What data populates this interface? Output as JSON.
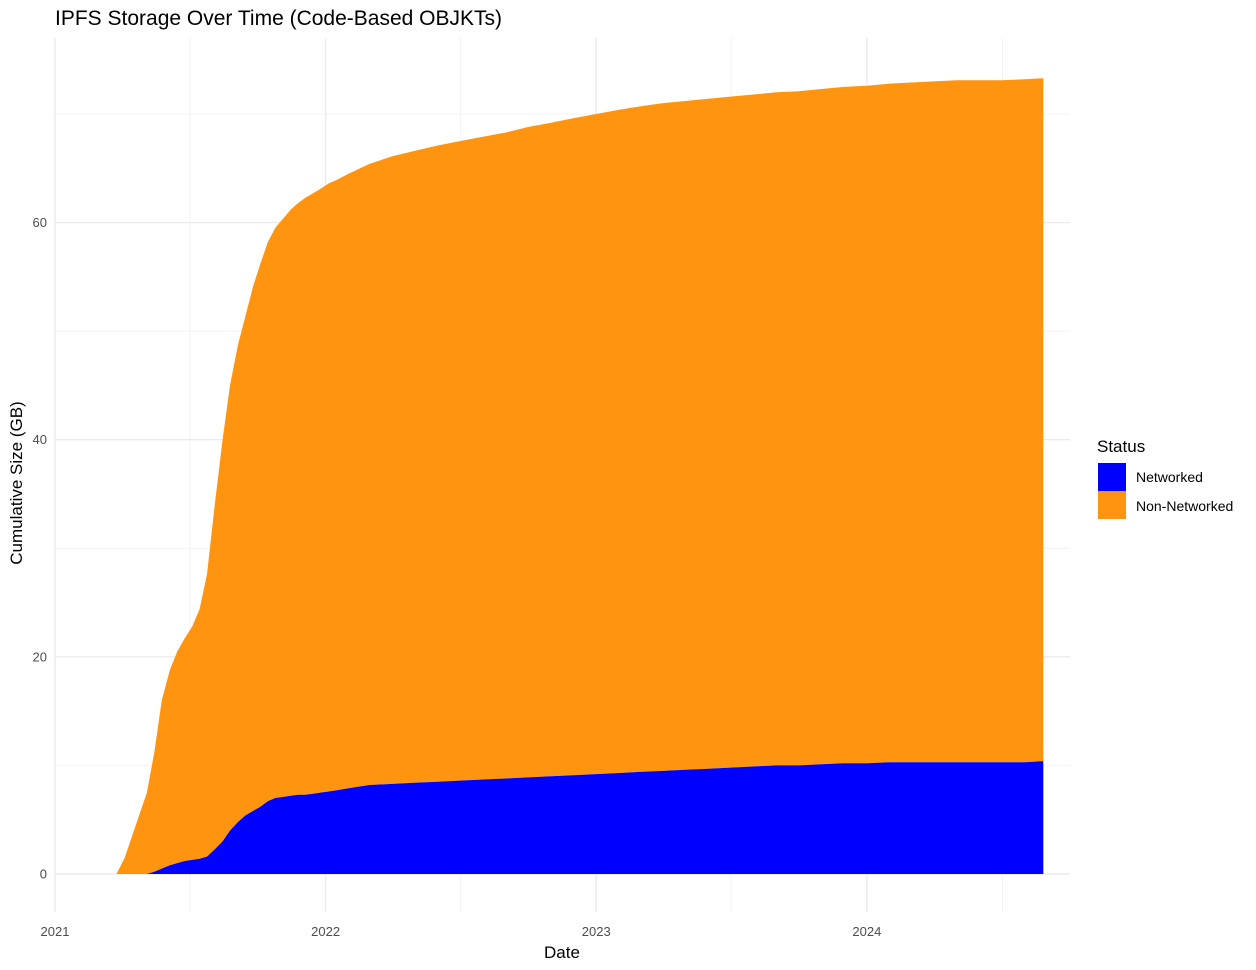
{
  "chart_data": {
    "type": "area",
    "stacked": true,
    "title": "IPFS Storage Over Time (Code-Based OBJKTs)",
    "xlabel": "Date",
    "ylabel": "Cumulative Size (GB)",
    "x_ticks": [
      "2021",
      "2022",
      "2023",
      "2024"
    ],
    "y_ticks": [
      0,
      20,
      40,
      60
    ],
    "xlim": [
      "2021-01-01",
      "2024-10-01"
    ],
    "ylim": [
      -3.5,
      77
    ],
    "grid": true,
    "legend": {
      "title": "Status",
      "position": "right",
      "entries": [
        {
          "label": "Networked",
          "color": "#0000ff"
        },
        {
          "label": "Non-Networked",
          "color": "#ff9410"
        }
      ]
    },
    "x": [
      "2021-03-25",
      "2021-04-05",
      "2021-04-15",
      "2021-04-25",
      "2021-05-05",
      "2021-05-15",
      "2021-05-25",
      "2021-06-05",
      "2021-06-15",
      "2021-06-25",
      "2021-07-05",
      "2021-07-15",
      "2021-07-25",
      "2021-08-05",
      "2021-08-15",
      "2021-08-25",
      "2021-09-05",
      "2021-09-15",
      "2021-09-25",
      "2021-10-05",
      "2021-10-15",
      "2021-10-25",
      "2021-11-05",
      "2021-11-15",
      "2021-11-25",
      "2021-12-05",
      "2021-12-15",
      "2021-12-25",
      "2022-01-05",
      "2022-01-15",
      "2022-02-01",
      "2022-03-01",
      "2022-04-01",
      "2022-05-01",
      "2022-06-01",
      "2022-07-01",
      "2022-08-01",
      "2022-09-01",
      "2022-10-01",
      "2022-11-01",
      "2022-12-01",
      "2023-01-01",
      "2023-02-01",
      "2023-03-01",
      "2023-04-01",
      "2023-05-01",
      "2023-06-01",
      "2023-07-01",
      "2023-08-01",
      "2023-09-01",
      "2023-10-01",
      "2023-11-01",
      "2023-12-01",
      "2024-01-01",
      "2024-02-01",
      "2024-03-01",
      "2024-04-01",
      "2024-05-01",
      "2024-06-01",
      "2024-07-01",
      "2024-08-01",
      "2024-08-26"
    ],
    "series": [
      {
        "name": "Non-Networked",
        "color": "#ff9410",
        "values": [
          0,
          1.5,
          3.5,
          5.5,
          7.5,
          11,
          15.5,
          18,
          19.5,
          20.5,
          21.5,
          23,
          26,
          32,
          37,
          41,
          44,
          46,
          48.3,
          50,
          51.5,
          52.5,
          53.3,
          54,
          54.5,
          55,
          55.3,
          55.6,
          56,
          56.2,
          56.6,
          57.2,
          57.8,
          58.2,
          58.6,
          58.9,
          59.2,
          59.5,
          59.9,
          60.2,
          60.5,
          60.8,
          61.1,
          61.3,
          61.5,
          61.6,
          61.7,
          61.8,
          61.9,
          62,
          62.1,
          62.2,
          62.3,
          62.4,
          62.5,
          62.6,
          62.7,
          62.8,
          62.8,
          62.8,
          62.9,
          62.9
        ]
      },
      {
        "name": "Networked",
        "color": "#0000ff",
        "values": [
          0,
          0,
          0,
          0,
          0,
          0.2,
          0.5,
          0.8,
          1,
          1.2,
          1.3,
          1.4,
          1.6,
          2.3,
          3,
          4,
          4.8,
          5.4,
          5.8,
          6.2,
          6.7,
          7,
          7.1,
          7.2,
          7.3,
          7.3,
          7.4,
          7.5,
          7.6,
          7.7,
          7.9,
          8.2,
          8.3,
          8.4,
          8.5,
          8.6,
          8.7,
          8.8,
          8.9,
          9,
          9.1,
          9.2,
          9.3,
          9.4,
          9.5,
          9.6,
          9.7,
          9.8,
          9.9,
          10,
          10,
          10.1,
          10.2,
          10.2,
          10.3,
          10.3,
          10.3,
          10.3,
          10.3,
          10.3,
          10.3,
          10.4
        ]
      }
    ]
  }
}
